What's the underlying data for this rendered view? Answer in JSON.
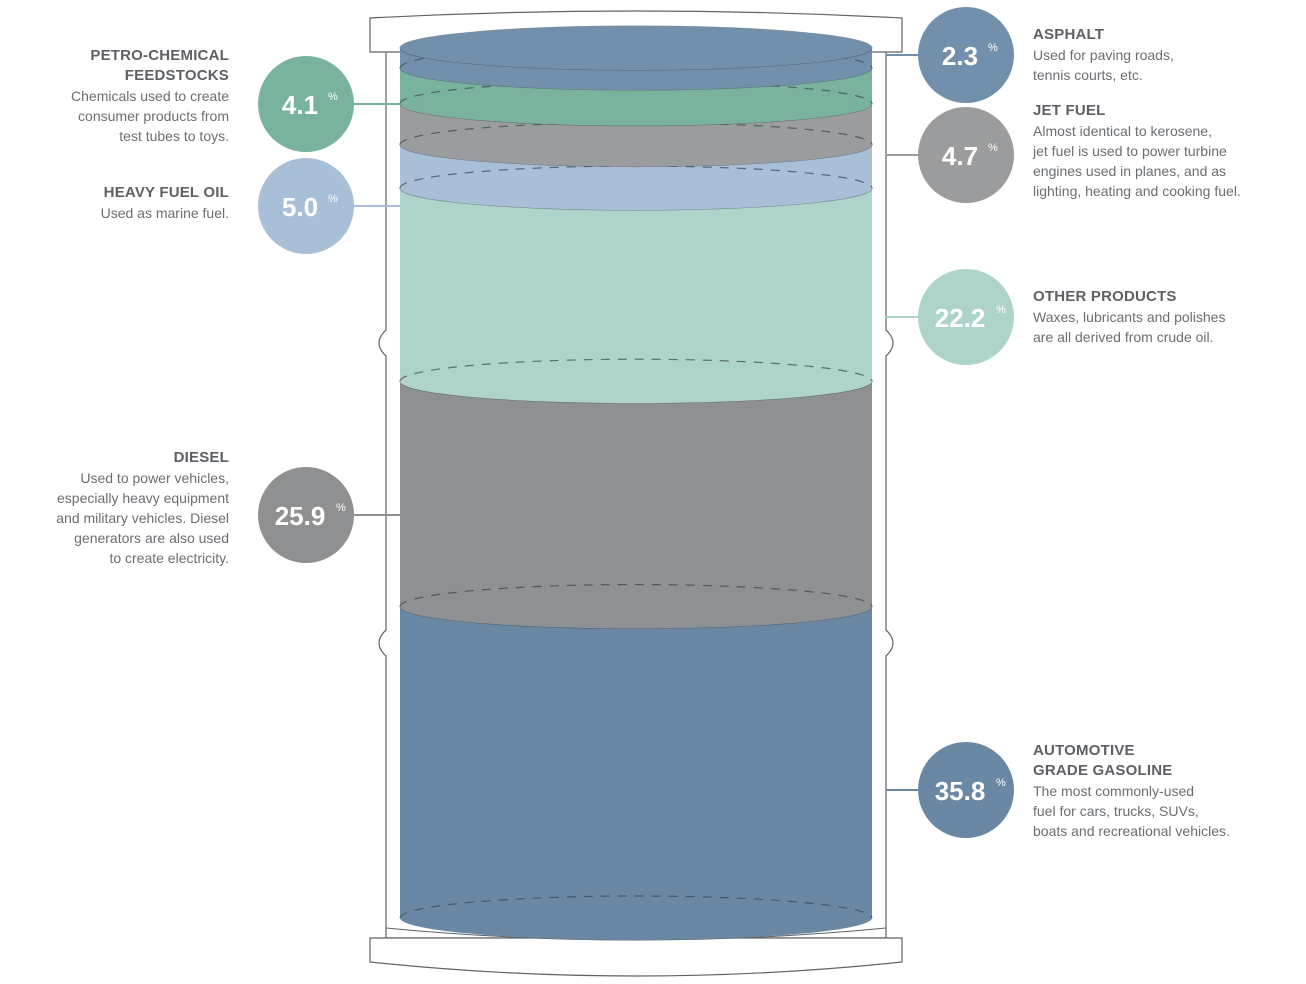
{
  "chart_data": {
    "type": "bar",
    "title": "",
    "unit": "%",
    "colors": {
      "dark_blue": "#6c8aa6",
      "green": "#80b9a4",
      "gray": "#9a9b9d",
      "light_blue": "#a7bdd6",
      "mint": "#b4d3cb",
      "diesel_gray": "#959799",
      "gasoline_blue": "#6a88a4",
      "outline": "#5f6468"
    },
    "series": [
      {
        "name": "ASPHALT",
        "value": 2.3,
        "value_label": "2.3",
        "description": "Used for paving roads, tennis courts, etc.",
        "color": "#7290ab"
      },
      {
        "name": "PETRO-CHEMICAL FEEDSTOCKS",
        "value": 4.1,
        "value_label": "4.1",
        "description": "Chemicals used to create consumer products from test tubes to toys.",
        "color": "#79b39d"
      },
      {
        "name": "JET FUEL",
        "value": 4.7,
        "value_label": "4.7",
        "description": "Almost identical to kerosene, jet fuel is used to power turbine engines used in planes, and as lighting, heating and cooking fuel.",
        "color": "#9b9c9e"
      },
      {
        "name": "HEAVY FUEL OIL",
        "value": 5.0,
        "value_label": "5.0",
        "description": "Used as marine fuel.",
        "color": "#a9bed7"
      },
      {
        "name": "OTHER PRODUCTS",
        "value": 22.2,
        "value_label": "22.2",
        "description": "Waxes, lubricants and polishes are all derived from crude oil.",
        "color": "#aed3ca"
      },
      {
        "name": "DIESEL",
        "value": 25.9,
        "value_label": "25.9",
        "description": "Used to power vehicles, especially heavy equipment and military vehicles. Diesel generators are also used to create electricity.",
        "color": "#8e9092"
      },
      {
        "name": "AUTOMOTIVE GRADE GASOLINE",
        "value": 35.8,
        "value_label": "35.8",
        "description": "The most commonly-used fuel for cars, trucks, SUVs, boats and recreational vehicles.",
        "color": "#6a88a4"
      }
    ]
  },
  "labels": {
    "asphalt": {
      "title": "ASPHALT",
      "lines": [
        "Used for paving roads,",
        "tennis courts, etc."
      ]
    },
    "petro": {
      "title_lines": [
        "PETRO-CHEMICAL",
        "FEEDSTOCKS"
      ],
      "lines": [
        "Chemicals used to create",
        "consumer products from",
        "test tubes to toys."
      ]
    },
    "jet": {
      "title": "JET FUEL",
      "lines": [
        "Almost identical to kerosene,",
        "jet fuel is used to power turbine",
        "engines used in planes, and as",
        "lighting, heating and cooking fuel."
      ]
    },
    "heavy": {
      "title": "HEAVY FUEL OIL",
      "lines": [
        "Used as marine fuel."
      ]
    },
    "other": {
      "title": "OTHER PRODUCTS",
      "lines": [
        "Waxes, lubricants and polishes",
        "are all derived from crude oil."
      ]
    },
    "diesel": {
      "title": "DIESEL",
      "lines": [
        "Used to power vehicles,",
        "especially heavy equipment",
        "and military vehicles. Diesel",
        "generators are also used",
        "to create electricity."
      ]
    },
    "gasoline": {
      "title_lines": [
        "AUTOMOTIVE",
        "GRADE GASOLINE"
      ],
      "lines": [
        "The most commonly-used",
        "fuel for cars, trucks, SUVs,",
        "boats and recreational vehicles."
      ]
    }
  },
  "percent_sign": "%"
}
